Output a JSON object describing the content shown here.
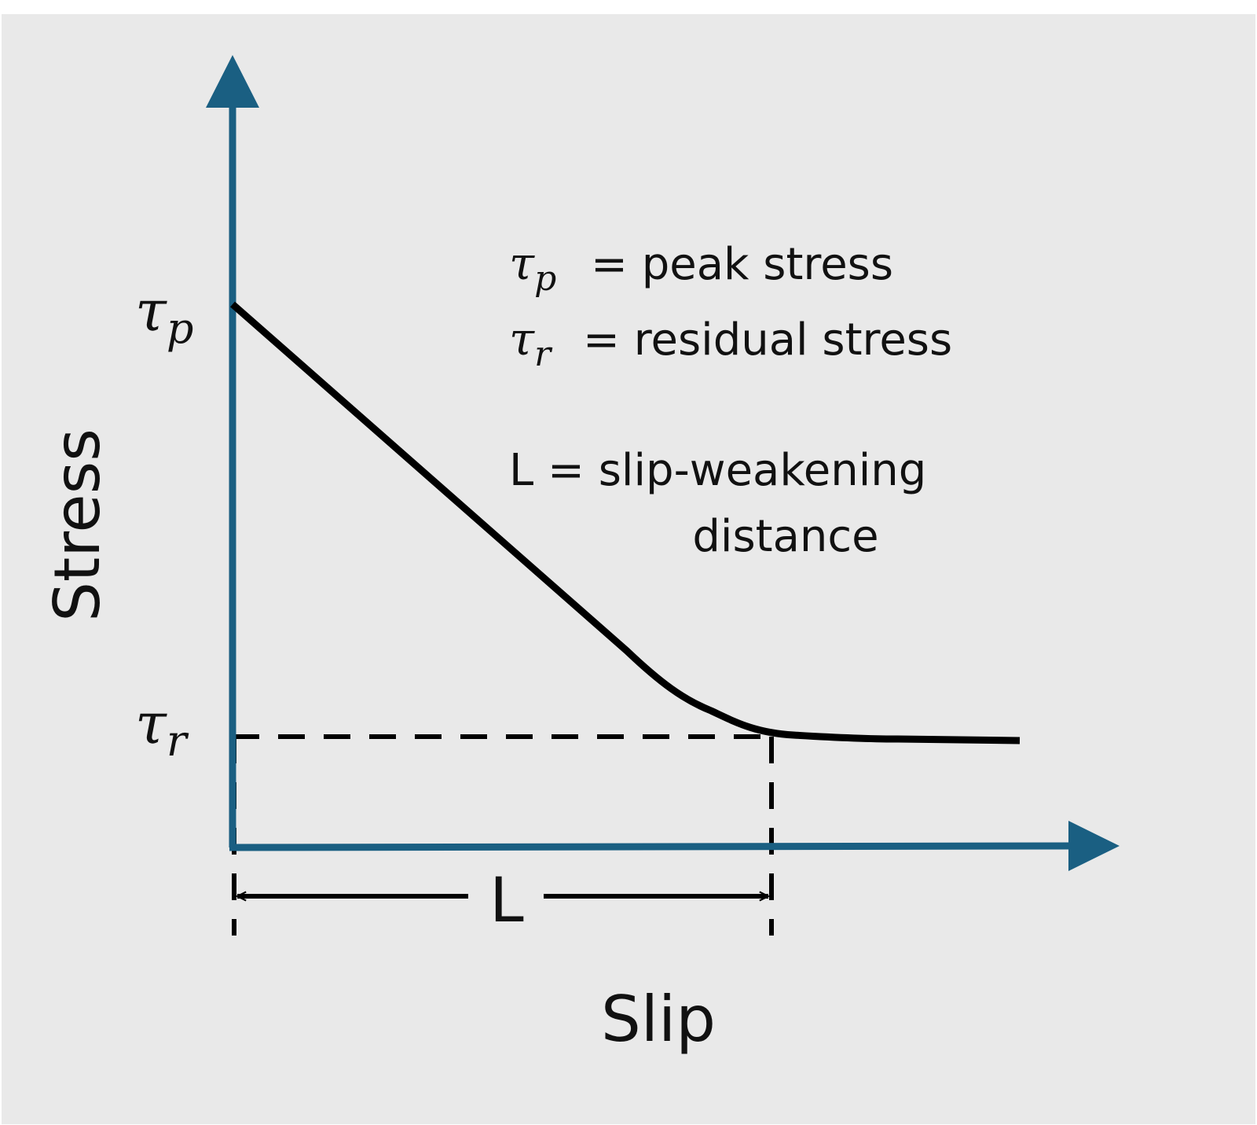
{
  "axes": {
    "y_label": "Stress",
    "x_label": "Slip",
    "color": "#1a5f82"
  },
  "ticks": {
    "peak": {
      "symbol": "τ",
      "sub": "p"
    },
    "residual": {
      "symbol": "τ",
      "sub": "r"
    }
  },
  "legend": {
    "peak": {
      "symbol": "τ",
      "sub": "p",
      "text": "= peak stress"
    },
    "residual": {
      "symbol": "τ",
      "sub": "r",
      "text": "= residual stress"
    },
    "distance_line1": "L = slip-weakening",
    "distance_line2": "distance"
  },
  "dimension": {
    "label": "L"
  },
  "colors": {
    "background": "#e9e9e9",
    "curve": "#000000"
  }
}
